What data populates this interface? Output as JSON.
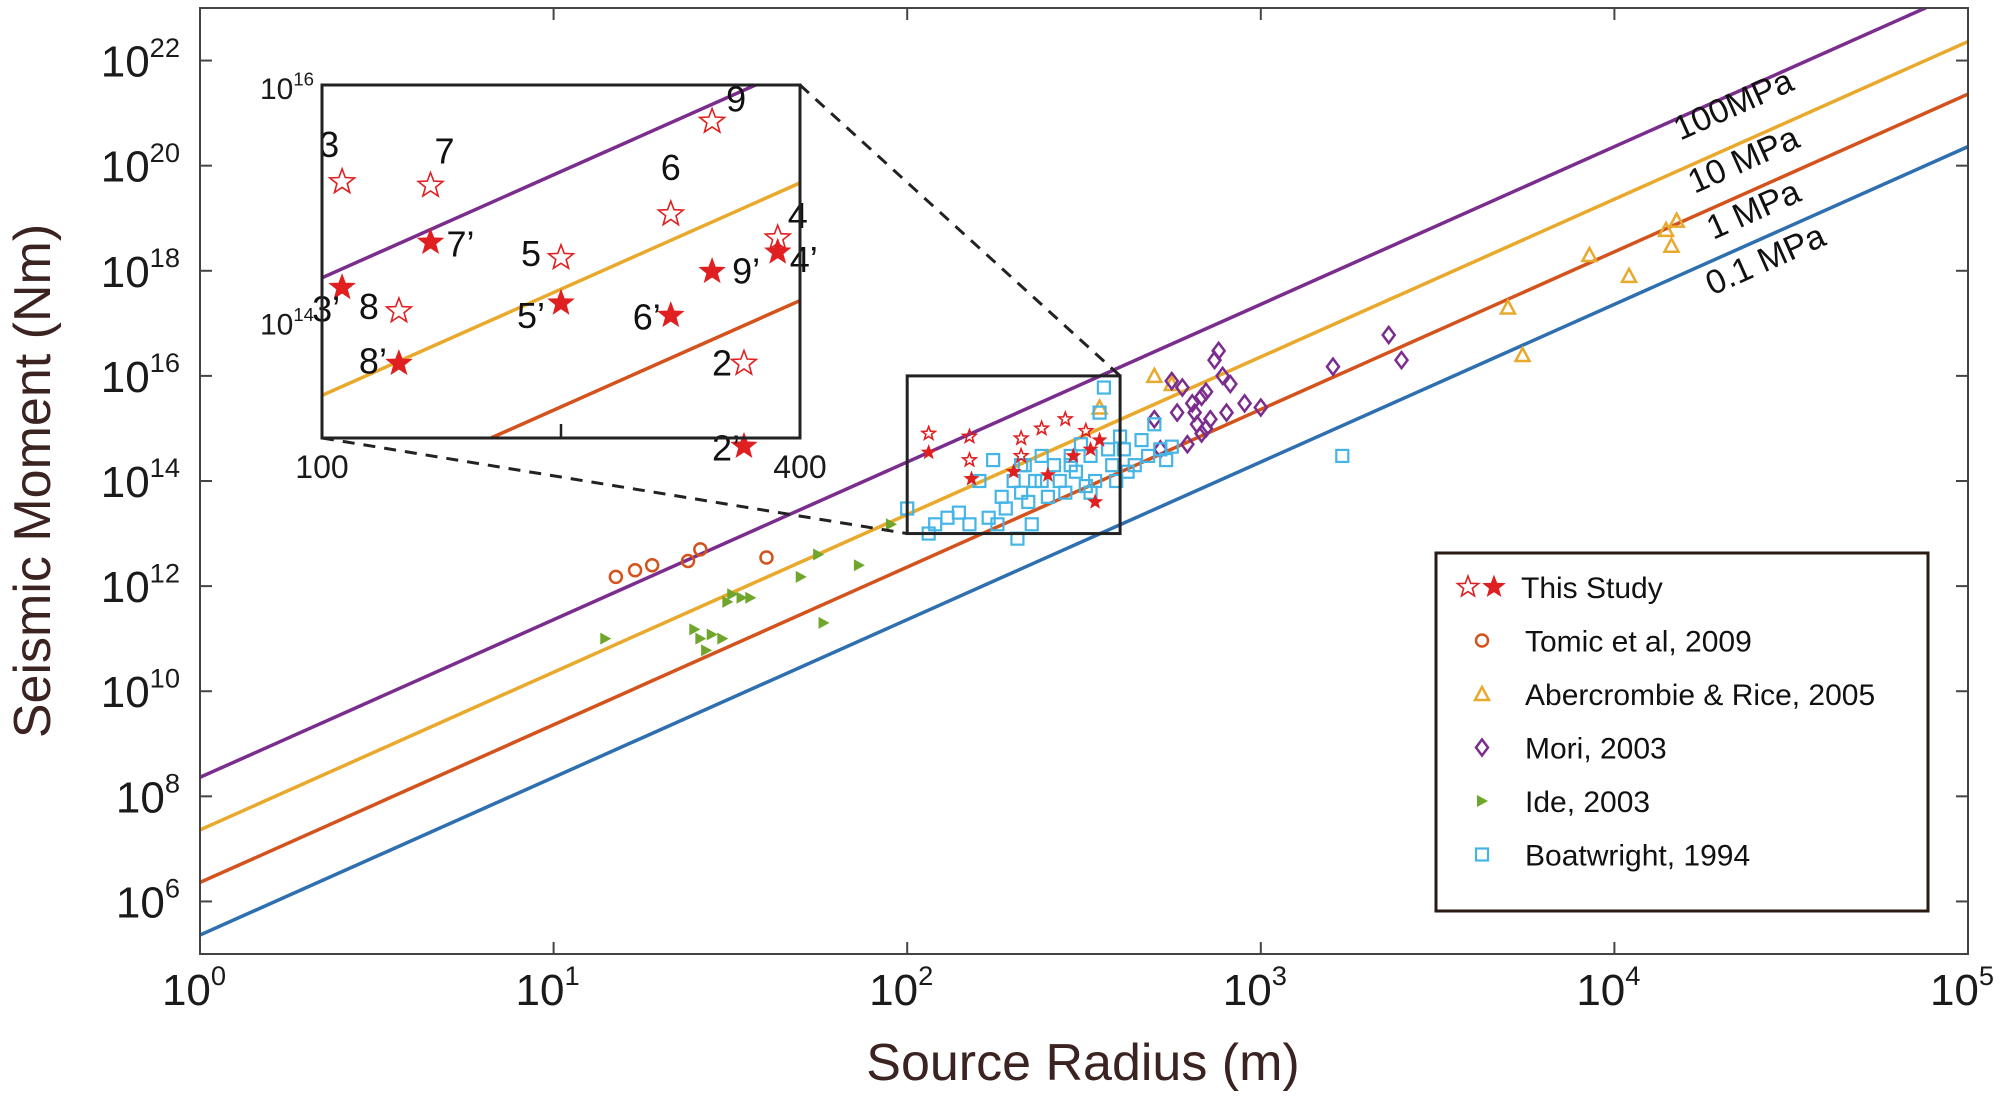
{
  "chart_data": {
    "type": "scatter",
    "xlabel": "Source Radius (m)",
    "ylabel": "Seismic Moment (Nm)",
    "xscale": "log",
    "yscale": "log",
    "xlim": [
      1,
      100000
    ],
    "ylim": [
      100000.0,
      1e+23
    ],
    "x_ticks": [
      {
        "base": "10",
        "exp": "0",
        "value": 1
      },
      {
        "base": "10",
        "exp": "1",
        "value": 10
      },
      {
        "base": "10",
        "exp": "2",
        "value": 100
      },
      {
        "base": "10",
        "exp": "3",
        "value": 1000
      },
      {
        "base": "10",
        "exp": "4",
        "value": 10000
      },
      {
        "base": "10",
        "exp": "5",
        "value": 100000
      }
    ],
    "y_ticks": [
      {
        "base": "10",
        "exp": "6",
        "value": 1000000.0
      },
      {
        "base": "10",
        "exp": "8",
        "value": 100000000.0
      },
      {
        "base": "10",
        "exp": "10",
        "value": 10000000000.0
      },
      {
        "base": "10",
        "exp": "12",
        "value": 1000000000000.0
      },
      {
        "base": "10",
        "exp": "14",
        "value": 100000000000000.0
      },
      {
        "base": "10",
        "exp": "16",
        "value": 1e+16
      },
      {
        "base": "10",
        "exp": "18",
        "value": 1e+18
      },
      {
        "base": "10",
        "exp": "20",
        "value": 1e+20
      },
      {
        "base": "10",
        "exp": "22",
        "value": 1e+22
      }
    ],
    "stress_lines": [
      {
        "label": "100MPa",
        "color": "#7b2d8e",
        "m0_at_r1": 230000000.0
      },
      {
        "label": "10 MPa",
        "color": "#e8a92c",
        "m0_at_r1": 23000000.0
      },
      {
        "label": "1  MPa",
        "color": "#d4531d",
        "m0_at_r1": 2300000.0
      },
      {
        "label": "0.1 MPa",
        "color": "#2e6fb0",
        "m0_at_r1": 230000.0
      }
    ],
    "legend": [
      {
        "label": "This Study",
        "marker": "star-pair",
        "color": "#e02020"
      },
      {
        "label": "Tomic et al, 2009",
        "marker": "circle",
        "color": "#d4531d"
      },
      {
        "label": "Abercrombie & Rice, 2005",
        "marker": "triangle",
        "color": "#e8a92c"
      },
      {
        "label": "Mori, 2003",
        "marker": "diamond",
        "color": "#7b2d8e"
      },
      {
        "label": "Ide, 2003",
        "marker": "tri-right",
        "color": "#6fa62b"
      },
      {
        "label": "Boatwright, 1994",
        "marker": "square",
        "color": "#45b5e6"
      }
    ],
    "series": [
      {
        "name": "Tomic et al, 2009",
        "marker": "circle",
        "color": "#d4531d",
        "points": [
          [
            15,
            1500000000000.0
          ],
          [
            17,
            2000000000000.0
          ],
          [
            19,
            2500000000000.0
          ],
          [
            24,
            3000000000000.0
          ],
          [
            26,
            5000000000000.0
          ],
          [
            40,
            3500000000000.0
          ]
        ]
      },
      {
        "name": "Abercrombie & Rice, 2005",
        "marker": "triangle",
        "color": "#e8a92c",
        "points": [
          [
            350,
            2500000000000000.0
          ],
          [
            500,
            1e+16
          ],
          [
            560,
            7000000000000000.0
          ],
          [
            5000,
            2e+17
          ],
          [
            5500,
            2.5e+16
          ],
          [
            8500,
            2e+18
          ],
          [
            11000,
            8e+17
          ],
          [
            14000,
            6e+18
          ],
          [
            14500,
            3e+18
          ],
          [
            15000,
            9e+18
          ]
        ]
      },
      {
        "name": "Mori, 2003",
        "marker": "diamond",
        "color": "#7b2d8e",
        "points": [
          [
            500,
            1500000000000000.0
          ],
          [
            520,
            400000000000000.0
          ],
          [
            560,
            8000000000000000.0
          ],
          [
            580,
            2000000000000000.0
          ],
          [
            600,
            6000000000000000.0
          ],
          [
            620,
            500000000000000.0
          ],
          [
            640,
            3000000000000000.0
          ],
          [
            660,
            1200000000000000.0
          ],
          [
            680,
            800000000000000.0
          ],
          [
            700,
            5000000000000000.0
          ],
          [
            720,
            1500000000000000.0
          ],
          [
            740,
            2e+16
          ],
          [
            760,
            3e+16
          ],
          [
            780,
            1e+16
          ],
          [
            800,
            2000000000000000.0
          ],
          [
            820,
            7000000000000000.0
          ],
          [
            680,
            4000000000000000.0
          ],
          [
            900,
            3000000000000000.0
          ],
          [
            1000,
            2500000000000000.0
          ],
          [
            1600,
            1.5e+16
          ],
          [
            2300,
            6e+16
          ],
          [
            2500,
            2e+16
          ],
          [
            700,
            1000000000000000.0
          ],
          [
            650,
            2000000000000000.0
          ]
        ]
      },
      {
        "name": "Ide, 2003",
        "marker": "tri-right",
        "color": "#6fa62b",
        "points": [
          [
            14,
            100000000000.0
          ],
          [
            25,
            150000000000.0
          ],
          [
            26,
            100000000000.0
          ],
          [
            27,
            60000000000.0
          ],
          [
            28,
            120000000000.0
          ],
          [
            30,
            100000000000.0
          ],
          [
            31,
            500000000000.0
          ],
          [
            32,
            700000000000.0
          ],
          [
            34,
            600000000000.0
          ],
          [
            36,
            600000000000.0
          ],
          [
            50,
            1500000000000.0
          ],
          [
            56,
            4000000000000.0
          ],
          [
            58,
            200000000000.0
          ],
          [
            73,
            2500000000000.0
          ],
          [
            90,
            15000000000000.0
          ]
        ]
      },
      {
        "name": "Boatwright, 1994",
        "marker": "square",
        "color": "#45b5e6",
        "points": [
          [
            100,
            30000000000000.0
          ],
          [
            115,
            10000000000000.0
          ],
          [
            120,
            15000000000000.0
          ],
          [
            130,
            20000000000000.0
          ],
          [
            140,
            25000000000000.0
          ],
          [
            150,
            15000000000000.0
          ],
          [
            160,
            100000000000000.0
          ],
          [
            170,
            20000000000000.0
          ],
          [
            175,
            250000000000000.0
          ],
          [
            180,
            15000000000000.0
          ],
          [
            185,
            50000000000000.0
          ],
          [
            190,
            30000000000000.0
          ],
          [
            200,
            100000000000000.0
          ],
          [
            205,
            8000000000000.0
          ],
          [
            210,
            60000000000000.0
          ],
          [
            215,
            200000000000000.0
          ],
          [
            220,
            40000000000000.0
          ],
          [
            225,
            15000000000000.0
          ],
          [
            230,
            100000000000000.0
          ],
          [
            240,
            300000000000000.0
          ],
          [
            250,
            50000000000000.0
          ],
          [
            260,
            200000000000000.0
          ],
          [
            270,
            100000000000000.0
          ],
          [
            280,
            60000000000000.0
          ],
          [
            290,
            300000000000000.0
          ],
          [
            300,
            150000000000000.0
          ],
          [
            310,
            500000000000000.0
          ],
          [
            320,
            80000000000000.0
          ],
          [
            330,
            300000000000000.0
          ],
          [
            340,
            100000000000000.0
          ],
          [
            350,
            2000000000000000.0
          ],
          [
            360,
            6000000000000000.0
          ],
          [
            370,
            400000000000000.0
          ],
          [
            380,
            200000000000000.0
          ],
          [
            390,
            100000000000000.0
          ],
          [
            400,
            700000000000000.0
          ],
          [
            410,
            400000000000000.0
          ],
          [
            420,
            150000000000000.0
          ],
          [
            440,
            200000000000000.0
          ],
          [
            460,
            600000000000000.0
          ],
          [
            480,
            300000000000000.0
          ],
          [
            500,
            1200000000000000.0
          ],
          [
            520,
            400000000000000.0
          ],
          [
            540,
            250000000000000.0
          ],
          [
            560,
            450000000000000.0
          ],
          [
            1700,
            300000000000000.0
          ],
          [
            210,
            200000000000000.0
          ],
          [
            240,
            100000000000000.0
          ],
          [
            290,
            200000000000000.0
          ],
          [
            330,
            60000000000000.0
          ]
        ]
      },
      {
        "name": "This Study (open)",
        "marker": "star-open",
        "color": "#e02020",
        "points": [
          [
            115,
            800000000000000.0
          ],
          [
            150,
            700000000000000.0
          ],
          [
            150,
            250000000000000.0
          ],
          [
            210,
            650000000000000.0
          ],
          [
            280,
            1500000000000000.0
          ],
          [
            320,
            900000000000000.0
          ],
          [
            210,
            300000000000000.0
          ],
          [
            240,
            1000000000000000.0
          ]
        ]
      },
      {
        "name": "This Study (filled)",
        "marker": "star-filled",
        "color": "#e02020",
        "points": [
          [
            115,
            350000000000000.0
          ],
          [
            152,
            110000000000000.0
          ],
          [
            200,
            150000000000000.0
          ],
          [
            250,
            130000000000000.0
          ],
          [
            295,
            300000000000000.0
          ],
          [
            330,
            400000000000000.0
          ],
          [
            340,
            40000000000000.0
          ],
          [
            350,
            600000000000000.0
          ]
        ]
      }
    ],
    "inset": {
      "xlim": [
        100,
        400
      ],
      "ylim": [
        10000000000000.0,
        1e+16
      ],
      "x_tick_labels": [
        "100",
        "400"
      ],
      "y_ticks": [
        {
          "base": "10",
          "exp": "16",
          "value": 1e+16
        },
        {
          "base": "10",
          "exp": "14",
          "value": 100000000000000.0
        }
      ],
      "lines": [
        {
          "color": "#7b2d8e",
          "m0_at_r1": 230000000.0
        },
        {
          "color": "#e8a92c",
          "m0_at_r1": 23000000.0
        },
        {
          "color": "#d4531d",
          "m0_at_r1": 2300000.0
        }
      ],
      "points": [
        {
          "label": "3",
          "filled": false,
          "x": 106,
          "y": 1500000000000000.0
        },
        {
          "label": "3’",
          "filled": true,
          "x": 106,
          "y": 190000000000000.0
        },
        {
          "label": "7",
          "filled": false,
          "x": 137,
          "y": 1400000000000000.0
        },
        {
          "label": "7’",
          "filled": true,
          "x": 137,
          "y": 460000000000000.0
        },
        {
          "label": "8",
          "filled": false,
          "x": 125,
          "y": 120000000000000.0
        },
        {
          "label": "8’",
          "filled": true,
          "x": 125,
          "y": 43000000000000.0
        },
        {
          "label": "5",
          "filled": false,
          "x": 200,
          "y": 340000000000000.0
        },
        {
          "label": "5’",
          "filled": true,
          "x": 200,
          "y": 140000000000000.0
        },
        {
          "label": "6",
          "filled": false,
          "x": 275,
          "y": 800000000000000.0
        },
        {
          "label": "6’",
          "filled": true,
          "x": 275,
          "y": 110000000000000.0
        },
        {
          "label": "9",
          "filled": false,
          "x": 310,
          "y": 4900000000000000.0
        },
        {
          "label": "9’",
          "filled": true,
          "x": 310,
          "y": 260000000000000.0
        },
        {
          "label": "4",
          "filled": false,
          "x": 375,
          "y": 500000000000000.0
        },
        {
          "label": "4’",
          "filled": true,
          "x": 375,
          "y": 380000000000000.0
        },
        {
          "label": "2",
          "filled": false,
          "x": 340,
          "y": 43000000000000.0
        },
        {
          "label": "2’",
          "filled": true,
          "x": 340,
          "y": 8500000000000.0
        }
      ]
    }
  }
}
